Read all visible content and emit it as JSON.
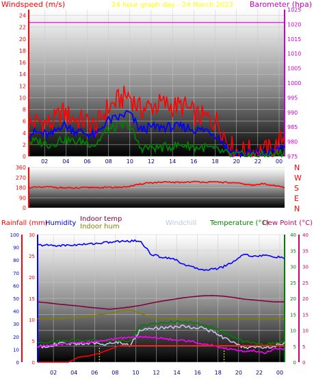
{
  "header": {
    "left": "Windspeed (m/s)",
    "center": "24 hour graph day - 24 March 2023",
    "right": "Barometer (hpa)"
  },
  "wind_panel": {
    "left_ticks": [
      "0",
      "2",
      "4",
      "6",
      "8",
      "10",
      "12",
      "14",
      "16",
      "18",
      "20",
      "22",
      "24"
    ],
    "right_ticks": [
      "975",
      "980",
      "985",
      "990",
      "995",
      "1000",
      "1005",
      "1010",
      "1015",
      "1020",
      "1025"
    ],
    "x_ticks": [
      "02",
      "04",
      "06",
      "08",
      "10",
      "12",
      "14",
      "16",
      "18",
      "20",
      "22",
      "00"
    ]
  },
  "dir_panel": {
    "left_ticks": [
      "0",
      "90",
      "180",
      "270",
      "360"
    ],
    "right_labels": [
      "N",
      "W",
      "S",
      "E",
      "N"
    ]
  },
  "temp_panel": {
    "legend": {
      "rain": "Rainfall (mm)",
      "humidity": "Humidity",
      "indoor_temp": "Indoor temp",
      "indoor_hum": "Indoor hum",
      "windchill": "Windchill",
      "temperature": "Temperature (°C)",
      "dewpoint": "Dew Point (°C)"
    },
    "rain_ticks": [
      "0",
      "10",
      "20",
      "30",
      "40",
      "50",
      "60",
      "70",
      "80",
      "90",
      "100"
    ],
    "hum_ticks": [
      "0",
      "5",
      "10",
      "15",
      "20",
      "25",
      "30"
    ],
    "temp_ticks": [
      "0",
      "5",
      "10",
      "15",
      "20",
      "25",
      "30",
      "35",
      "40"
    ],
    "dew_ticks": [
      "0",
      "5",
      "10",
      "15",
      "20",
      "25",
      "30",
      "35",
      "40"
    ],
    "x_ticks": [
      "02",
      "04",
      "06",
      "08",
      "10",
      "12",
      "14",
      "16",
      "18",
      "20",
      "22",
      "00"
    ]
  },
  "chart_data": [
    {
      "type": "line",
      "title": "24 hour graph day - 24 March 2023",
      "xlabel": "",
      "ylabel": "Windspeed (m/s)",
      "ylabel_right": "Barometer (hpa)",
      "x": [
        "01",
        "02",
        "03",
        "04",
        "05",
        "06",
        "07",
        "08",
        "09",
        "10",
        "11",
        "12",
        "13",
        "14",
        "15",
        "16",
        "17",
        "18",
        "19",
        "20",
        "21",
        "22",
        "23",
        "00"
      ],
      "ylim": [
        0,
        25
      ],
      "ylim_right": [
        975,
        1025
      ],
      "series": [
        {
          "name": "Gust",
          "color": "#ff0000",
          "values": [
            5.5,
            6.0,
            5.5,
            7.5,
            6.5,
            6.0,
            5.0,
            8.0,
            9.5,
            10.5,
            8.0,
            8.5,
            9.0,
            8.5,
            8.5,
            7.0,
            6.5,
            6.0,
            2.0,
            0.8,
            1.0,
            0.9,
            1.2,
            3.5
          ]
        },
        {
          "name": "Wind",
          "color": "#0000ff",
          "values": [
            4.0,
            4.0,
            3.5,
            5.5,
            4.5,
            4.0,
            3.5,
            6.0,
            6.5,
            7.5,
            4.5,
            5.0,
            5.0,
            5.0,
            5.0,
            4.5,
            4.5,
            3.5,
            1.0,
            0.5,
            0.5,
            0.5,
            0.7,
            2.0
          ]
        },
        {
          "name": "Average",
          "color": "#008000",
          "values": [
            2.5,
            2.5,
            2.0,
            3.0,
            2.5,
            2.5,
            2.0,
            4.5,
            5.0,
            5.5,
            1.5,
            1.5,
            1.5,
            1.8,
            2.0,
            1.5,
            1.5,
            1.0,
            0.3,
            0.2,
            0.2,
            0.2,
            0.3,
            0.8
          ]
        },
        {
          "name": "Barometer",
          "color": "#cc00cc",
          "axis": "right",
          "values": [
            1020.6,
            1020.6,
            1020.6,
            1020.6,
            1020.6,
            1020.6,
            1020.6,
            1020.6,
            1020.6,
            1020.6,
            1020.6,
            1020.6,
            1020.6,
            1020.6,
            1020.6,
            1020.6,
            1020.6,
            1020.6,
            1020.6,
            1020.6,
            1020.6,
            1020.6,
            1020.6,
            1020.6
          ]
        }
      ]
    },
    {
      "type": "line",
      "title": "",
      "xlabel": "",
      "ylabel": "",
      "x": [
        "00",
        "01",
        "02",
        "03",
        "04",
        "05",
        "06",
        "07",
        "08",
        "09",
        "10",
        "11",
        "12",
        "13",
        "14",
        "15",
        "16",
        "17",
        "18",
        "19",
        "20",
        "21",
        "22",
        "23",
        "00"
      ],
      "ylim": [
        0,
        360
      ],
      "series": [
        {
          "name": "Wind direction",
          "color": "#ff0000",
          "values": [
            180,
            182,
            185,
            180,
            175,
            178,
            182,
            180,
            182,
            185,
            200,
            222,
            225,
            228,
            226,
            230,
            232,
            228,
            230,
            222,
            215,
            200,
            215,
            200,
            180
          ]
        }
      ]
    },
    {
      "type": "line",
      "title": "",
      "xlabel": "",
      "ylabel": "",
      "x": [
        "00",
        "01",
        "02",
        "03",
        "04",
        "05",
        "06",
        "07",
        "08",
        "09",
        "10",
        "11",
        "12",
        "13",
        "14",
        "15",
        "16",
        "17",
        "18",
        "19",
        "20",
        "21",
        "22",
        "23",
        "00"
      ],
      "ylim": [
        0,
        40
      ],
      "series": [
        {
          "name": "Humidity",
          "color": "#0000ff",
          "axis": "humidity",
          "values": [
            27.5,
            27.5,
            27.4,
            27.5,
            27.6,
            27.8,
            28,
            28.2,
            28.4,
            28.5,
            28.5,
            25.4,
            24.7,
            24.5,
            23.3,
            22.3,
            21.8,
            21.8,
            22.4,
            23.6,
            25.4,
            24.9,
            25.1,
            24.8,
            24.5
          ]
        },
        {
          "name": "Indoor temp",
          "color": "#800040",
          "axis": "temperature",
          "values": [
            18.9,
            18.6,
            18.2,
            17.9,
            17.6,
            17.2,
            16.9,
            16.6,
            16.9,
            17.3,
            17.8,
            18.5,
            19.1,
            19.6,
            20.1,
            20.5,
            20.8,
            20.9,
            20.7,
            20.3,
            19.8,
            19.5,
            19.2,
            18.9,
            18.9
          ]
        },
        {
          "name": "Indoor hum",
          "color": "#808000",
          "axis": "humidity",
          "values": [
            10.2,
            10.2,
            10.2,
            10.4,
            10.5,
            10.8,
            11.2,
            11.5,
            12.0,
            12.3,
            11.5,
            10.6,
            10.3,
            10.2,
            10.2,
            10.2,
            10.2,
            10.2,
            10.2,
            10.2,
            10.2,
            10.2,
            10.2,
            10.2,
            10.2
          ]
        },
        {
          "name": "Windchill",
          "color": "#c0c8e8",
          "axis": "temperature",
          "values": [
            4.8,
            5.1,
            5.8,
            5.7,
            5.9,
            5.9,
            5.8,
            5.9,
            6.2,
            5.3,
            10.3,
            10.5,
            10.7,
            11.0,
            11.2,
            11.0,
            10.8,
            9.5,
            7.8,
            6.0,
            4.8,
            4.6,
            4.5,
            5.0,
            6.0
          ]
        },
        {
          "name": "Temperature",
          "color": "#008000",
          "axis": "temperature",
          "values": [
            6.2,
            6.3,
            6.6,
            6.7,
            6.9,
            6.8,
            6.7,
            6.8,
            6.9,
            6.5,
            11.5,
            12.0,
            12.3,
            12.5,
            12.6,
            12.3,
            11.8,
            10.8,
            9.5,
            7.8,
            6.5,
            6.0,
            5.5,
            6.0,
            6.5
          ]
        },
        {
          "name": "Dew Point",
          "color": "#ff00ff",
          "axis": "dewpoint",
          "values": [
            5.0,
            5.3,
            5.6,
            5.8,
            6.0,
            6.3,
            6.5,
            7.0,
            7.5,
            7.8,
            7.9,
            7.8,
            7.5,
            7.1,
            6.8,
            6.5,
            5.9,
            5.3,
            4.4,
            4.0,
            3.4,
            3.6,
            2.9,
            4.0,
            4.1
          ]
        },
        {
          "name": "Rainfall",
          "color": "#ff0000",
          "axis": "rain",
          "values": [
            0,
            0,
            0,
            0,
            4,
            5,
            7,
            10,
            13,
            13,
            13,
            13,
            13,
            13,
            13,
            13,
            13,
            13,
            13,
            13,
            13,
            13,
            13,
            13,
            13
          ]
        }
      ]
    }
  ]
}
